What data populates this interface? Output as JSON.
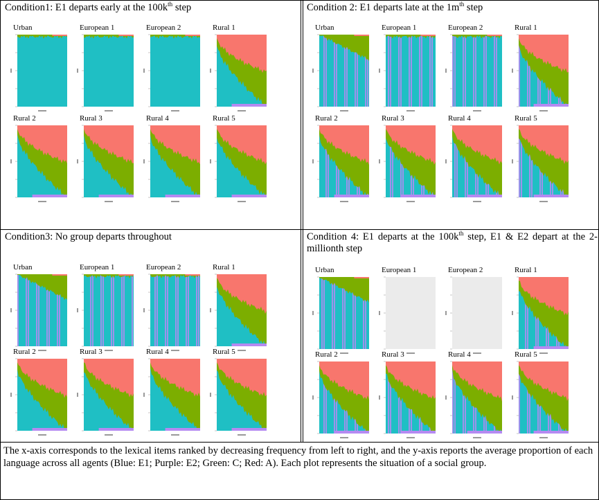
{
  "conditions": [
    {
      "caption": [
        "Condition1: E1 departs early at the 100k",
        "th",
        " step"
      ],
      "panels": [
        "Urban",
        "European 1",
        "European 2",
        "Rural 1",
        "Rural 2",
        "Rural 3",
        "Rural 4",
        "Rural 5"
      ]
    },
    {
      "caption": [
        "Condition 2: E1 departs late at the 1m",
        "th",
        " step"
      ],
      "panels": [
        "Urban",
        "European 1",
        "European 2",
        "Rural 1",
        "Rural 2",
        "Rural 3",
        "Rural 4",
        "Rural 5"
      ]
    },
    {
      "caption": [
        "Condition3: No group departs throughout",
        "",
        ""
      ],
      "panels": [
        "Urban",
        "European 1",
        "European 2",
        "Rural 1",
        "Rural 2",
        "Rural 3",
        "Rural 4",
        "Rural 5"
      ]
    },
    {
      "caption": [
        "Condition 4: E1 departs at the 100k",
        "th",
        " step, E1 & E2 depart at the 2-millionth step"
      ],
      "panels": [
        "Urban",
        "European 1",
        "European 2",
        "Rural 1",
        "Rural 2",
        "Rural 3",
        "Rural 4",
        "Rural 5"
      ]
    }
  ],
  "footer": "The x-axis corresponds to the lexical items ranked by decreasing frequency from left to right, and the y-axis reports the average proportion of each language across all agents (Blue: E1; Purple: E2; Green: C; Red: A). Each plot represents the situation of a social group."
}
